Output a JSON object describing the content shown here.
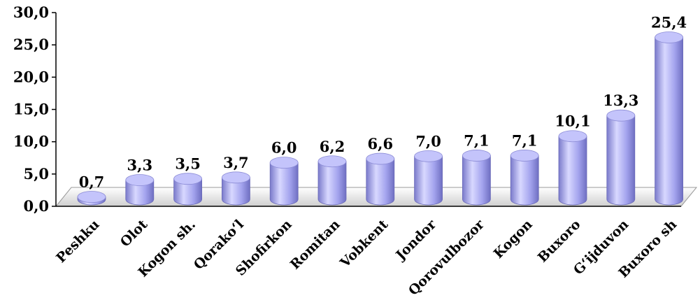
{
  "chart_data": {
    "type": "bar",
    "categories": [
      "Peshku",
      "Olot",
      "Kogon sh.",
      "Qorako‘l",
      "Shofirkon",
      "Romitan",
      "Vobkent",
      "Jondor",
      "Qorovulbozor",
      "Kogon",
      "Buxoro",
      "G‘ijduvon",
      "Buxoro sh"
    ],
    "values": [
      0.7,
      3.3,
      3.5,
      3.7,
      6.0,
      6.2,
      6.6,
      7.0,
      7.1,
      7.1,
      10.1,
      13.3,
      25.4
    ],
    "value_labels": [
      "0,7",
      "3,3",
      "3,5",
      "3,7",
      "6,0",
      "6,2",
      "6,6",
      "7,0",
      "7,1",
      "7,1",
      "10,1",
      "13,3",
      "25,4"
    ],
    "yticks": [
      "0,0",
      "5,0",
      "10,0",
      "15,0",
      "20,0",
      "25,0",
      "30,0"
    ],
    "ylim": [
      0,
      30
    ],
    "title": "",
    "xlabel": "",
    "ylabel": "",
    "grid": false,
    "legend": "none",
    "colors": {
      "bar_light": "#d8d8ff",
      "bar_mid": "#a4a4ee",
      "bar_dark": "#6f6fc2",
      "bar_top": "#c4c4fb",
      "floor_light": "#f4f4f4",
      "floor_dark": "#cfcfcf",
      "axis": "#000000"
    }
  }
}
